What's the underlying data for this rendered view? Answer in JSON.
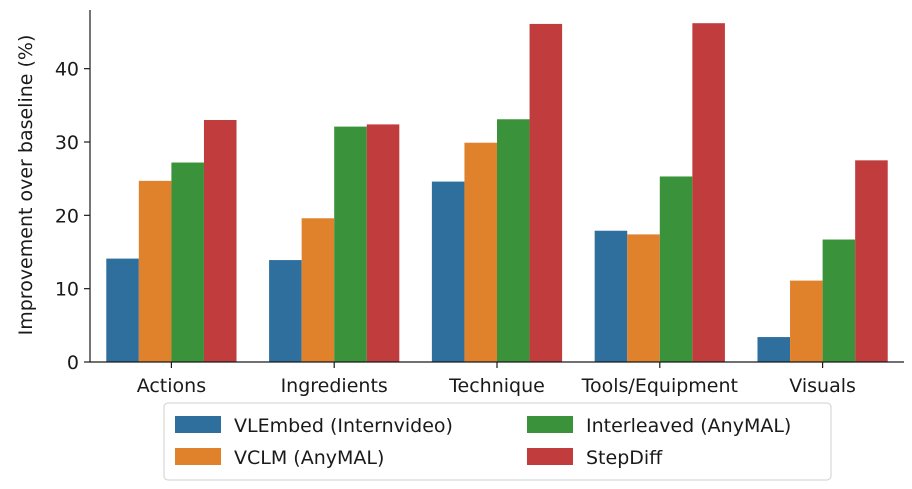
{
  "chart_data": {
    "type": "bar",
    "title": "",
    "xlabel": "",
    "ylabel": "Improvement over baseline (%)",
    "ylim": [
      0,
      48
    ],
    "yticks": [
      0,
      10,
      20,
      30,
      40
    ],
    "grid": false,
    "legend_position": "bottom",
    "categories": [
      "Actions",
      "Ingredients",
      "Technique",
      "Tools/Equipment",
      "Visuals"
    ],
    "series": [
      {
        "name": "VLEmbed (Internvideo)",
        "color": "#2e6f9e",
        "values": [
          14.1,
          13.9,
          24.6,
          17.9,
          3.4
        ]
      },
      {
        "name": "VCLM (AnyMAL)",
        "color": "#e0812c",
        "values": [
          24.7,
          19.6,
          29.9,
          17.4,
          11.1
        ]
      },
      {
        "name": "Interleaved (AnyMAL)",
        "color": "#3a923a",
        "values": [
          27.2,
          32.1,
          33.1,
          25.3,
          16.7
        ]
      },
      {
        "name": "StepDiff",
        "color": "#c03c3d",
        "values": [
          33.0,
          32.4,
          46.1,
          46.2,
          27.5
        ]
      }
    ]
  }
}
